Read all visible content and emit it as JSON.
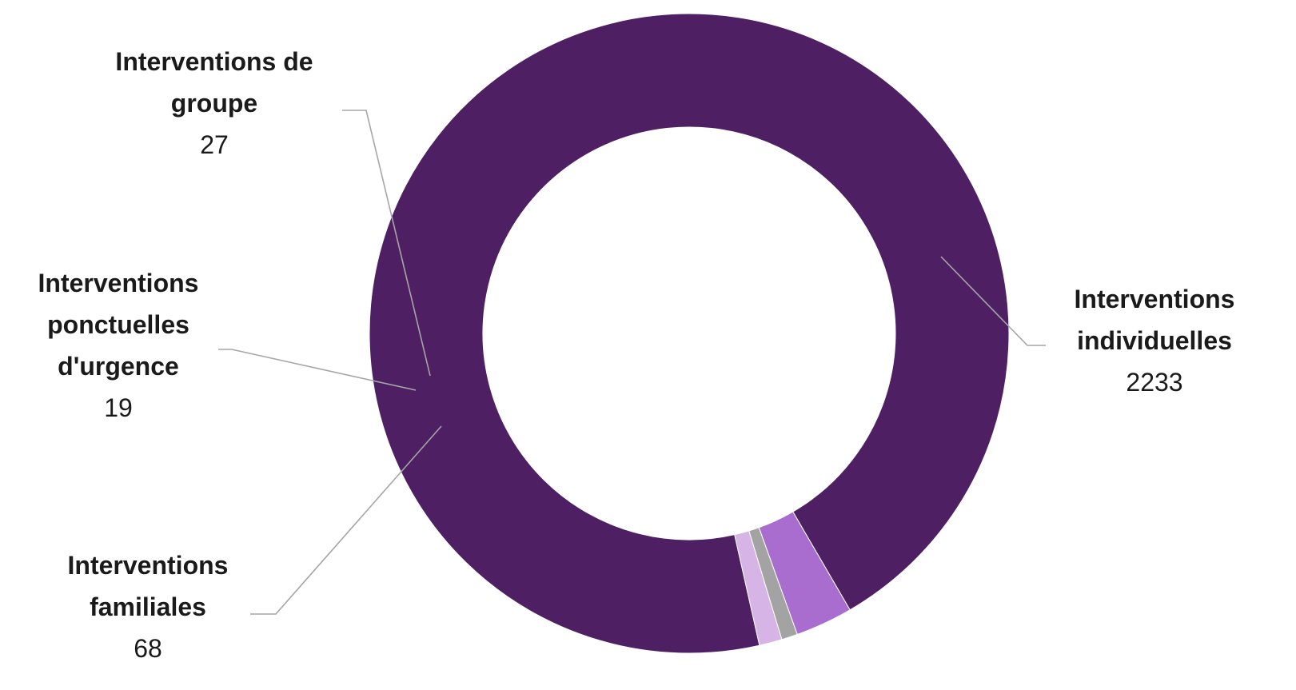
{
  "chart_data": {
    "type": "pie",
    "variant": "donut",
    "title": "",
    "slices": [
      {
        "label": "Interventions individuelles",
        "label_lines": [
          "Interventions",
          "individuelles"
        ],
        "value": 2233,
        "display_value": "2233",
        "color": "#4e1f63"
      },
      {
        "label": "Interventions familiales",
        "label_lines": [
          "Interventions",
          "familiales"
        ],
        "value": 68,
        "display_value": "68",
        "color": "#a96ccf"
      },
      {
        "label": "Interventions ponctuelles d'urgence",
        "label_lines": [
          "Interventions",
          "ponctuelles",
          "d'urgence"
        ],
        "value": 19,
        "display_value": "19",
        "color": "#a3a3a3"
      },
      {
        "label": "Interventions de groupe",
        "label_lines": [
          "Interventions de",
          "groupe"
        ],
        "value": 27,
        "display_value": "27",
        "color": "#d6b4e6"
      }
    ],
    "leader_line_color": "#a6a6a6",
    "legend": "none",
    "data_labels": "outside-with-leader-lines"
  }
}
